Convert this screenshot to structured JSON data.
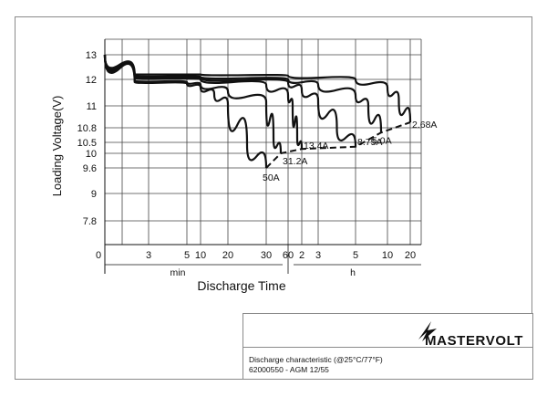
{
  "chart_data": {
    "type": "line",
    "title": "",
    "xlabel": "Discharge Time",
    "ylabel": "Loading  Voltage(V)",
    "y_ticks": [
      "13",
      "12",
      "11",
      "10.8",
      "10.5",
      "10",
      "9.6",
      "9",
      "7.8"
    ],
    "x_ticks_min": [
      "0",
      "3",
      "5",
      "10",
      "20",
      "30",
      "60"
    ],
    "x_ticks_h": [
      "2",
      "3",
      "5",
      "10",
      "20"
    ],
    "x_unit_min": "min",
    "x_unit_h": "h",
    "grid": true,
    "x_scale": "log",
    "x_unit": "minutes",
    "series": [
      {
        "name": "50A",
        "x": [
          0,
          2,
          5,
          10,
          15,
          20,
          25,
          30
        ],
        "y": [
          13.0,
          11.9,
          11.85,
          11.7,
          11.45,
          11.05,
          10.4,
          9.6
        ]
      },
      {
        "name": "31.2A",
        "x": [
          0,
          2,
          5,
          10,
          20,
          30,
          40,
          50
        ],
        "y": [
          13.0,
          11.95,
          11.9,
          11.8,
          11.55,
          11.15,
          10.6,
          10.0
        ]
      },
      {
        "name": "13.4A",
        "x": [
          0,
          2,
          10,
          30,
          60,
          80,
          100,
          120
        ],
        "y": [
          13.0,
          12.05,
          12.0,
          11.8,
          11.4,
          11.0,
          10.6,
          10.2
        ]
      },
      {
        "name": "8.75A",
        "x": [
          0,
          2,
          10,
          60,
          120,
          180,
          240,
          300
        ],
        "y": [
          13.0,
          12.1,
          12.05,
          11.9,
          11.6,
          11.2,
          10.8,
          10.3
        ]
      },
      {
        "name": "5.0A",
        "x": [
          0,
          2,
          10,
          60,
          180,
          300,
          420,
          540
        ],
        "y": [
          13.0,
          12.15,
          12.1,
          12.0,
          11.8,
          11.4,
          11.0,
          10.7
        ]
      },
      {
        "name": "2.68A",
        "x": [
          0,
          2,
          10,
          60,
          300,
          600,
          900,
          1200
        ],
        "y": [
          13.0,
          12.2,
          12.2,
          12.15,
          12.0,
          11.7,
          11.2,
          10.85
        ]
      }
    ],
    "cutoff_line": {
      "x": [
        30,
        50,
        120,
        300,
        540,
        1200
      ],
      "y": [
        9.6,
        10.0,
        10.2,
        10.3,
        10.7,
        10.85
      ],
      "style": "dashed"
    }
  },
  "info": {
    "brand": "MASTERVOLT",
    "caption_line1": "Discharge characteristic (@25°C/77°F)",
    "caption_line2": "62000550 - AGM 12/55"
  }
}
